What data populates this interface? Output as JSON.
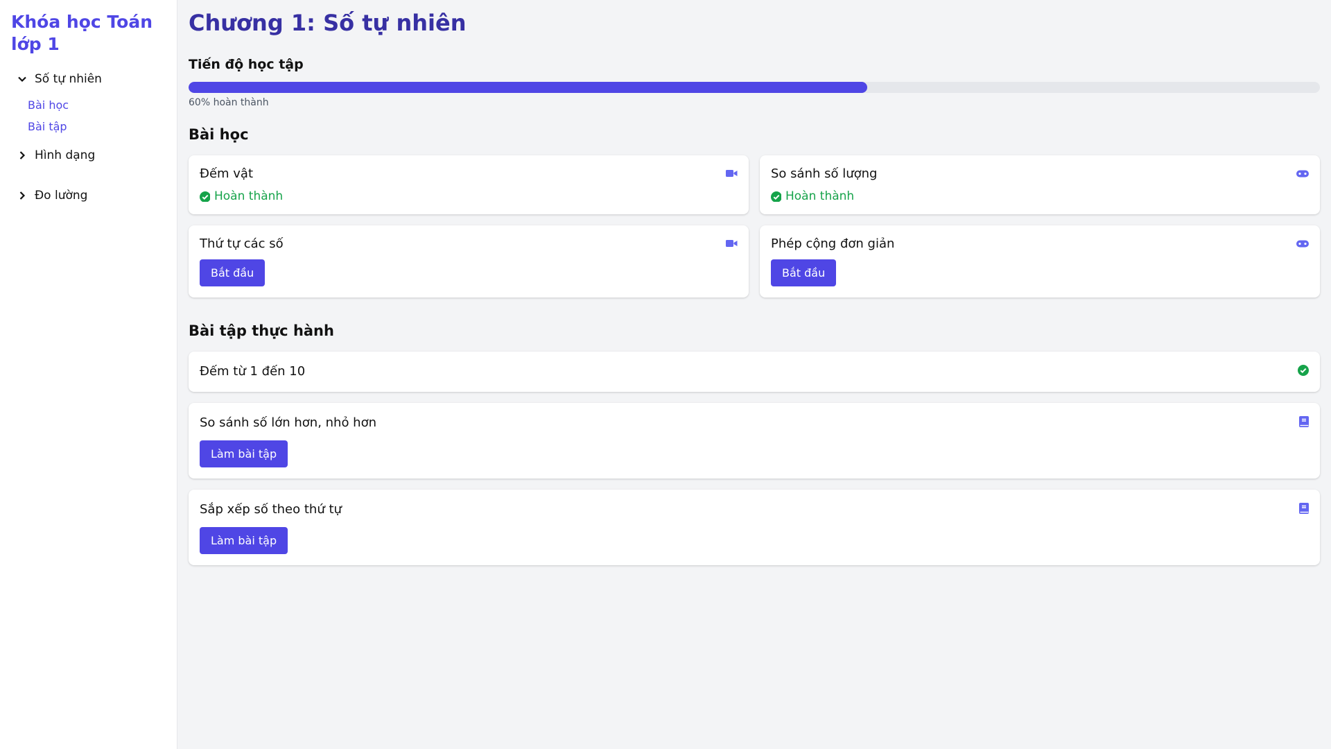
{
  "sidebar": {
    "title": "Khóa học Toán lớp 1",
    "items": [
      {
        "label": "Số tự nhiên",
        "expanded": true,
        "children": [
          "Bài học",
          "Bài tập"
        ]
      },
      {
        "label": "Hình dạng",
        "expanded": false
      },
      {
        "label": "Đo lường",
        "expanded": false
      }
    ]
  },
  "main": {
    "title": "Chương 1: Số tự nhiên",
    "progress": {
      "label": "Tiến độ học tập",
      "percent": 60,
      "text": "60% hoàn thành"
    },
    "lessons_heading": "Bài học",
    "lessons": [
      {
        "title": "Đếm vật",
        "icon": "video-icon",
        "status": "Hoàn thành"
      },
      {
        "title": "So sánh số lượng",
        "icon": "gamepad-icon",
        "status": "Hoàn thành"
      },
      {
        "title": "Thứ tự các số",
        "icon": "video-icon",
        "button": "Bắt đầu"
      },
      {
        "title": "Phép cộng đơn giản",
        "icon": "gamepad-icon",
        "button": "Bắt đầu"
      }
    ],
    "exercises_heading": "Bài tập thực hành",
    "exercises": [
      {
        "title": "Đếm từ 1 đến 10",
        "icon": "check-circle-icon"
      },
      {
        "title": "So sánh số lớn hơn, nhỏ hơn",
        "icon": "book-icon",
        "button": "Làm bài tập"
      },
      {
        "title": "Sắp xếp số theo thứ tự",
        "icon": "book-icon",
        "button": "Làm bài tập"
      }
    ]
  },
  "colors": {
    "accent": "#4f46e5",
    "heading": "#3730a3",
    "success": "#16a34a",
    "background": "#f3f4f6"
  }
}
